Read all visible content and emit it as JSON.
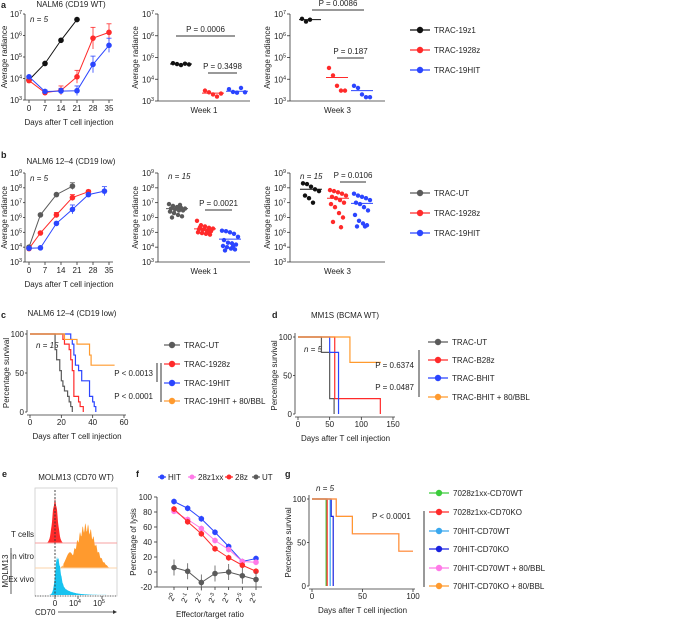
{
  "colors": {
    "black": "#111111",
    "grey": "#5a5a5a",
    "red": "#ff2a2a",
    "blue": "#2b45ff",
    "orange": "#ff9a2e",
    "green": "#3ccc3c",
    "lightblue": "#3aa8ee",
    "darkblue": "#1a22e0",
    "pink": "#ff7ae8",
    "cyan": "#17c3f0"
  },
  "panel_letters": [
    "a",
    "b",
    "c",
    "d",
    "e",
    "f",
    "g"
  ],
  "chart_data": [
    {
      "id": "a-line",
      "type": "line",
      "title": "NALM6 (CD19 WT)",
      "note": "n = 5",
      "xlabel": "Days after T cell injection",
      "ylabel": "Average radiance",
      "xticks": [
        0,
        7,
        14,
        21,
        28,
        35
      ],
      "yscale": "log",
      "ylim_exp": [
        3,
        7
      ],
      "series": [
        {
          "name": "TRAC-19z1",
          "color": "black",
          "x": [
            0,
            7,
            14,
            21
          ],
          "y": [
            8500,
            50000,
            600000,
            5500000
          ],
          "err_hi": [
            null,
            null,
            null,
            null
          ]
        },
        {
          "name": "TRAC-1928z",
          "color": "red",
          "x": [
            0,
            7,
            14,
            21,
            28,
            35
          ],
          "y": [
            8000,
            2200,
            2800,
            12000,
            750000,
            1400000
          ],
          "err_hi": [
            null,
            2800,
            4500,
            24000,
            2400000,
            3500000
          ]
        },
        {
          "name": "TRAC-19HIT",
          "color": "blue",
          "x": [
            0,
            7,
            14,
            21,
            28,
            35
          ],
          "y": [
            12000,
            2500,
            2600,
            2700,
            45000,
            350000
          ],
          "err_hi": [
            null,
            2900,
            3500,
            4500,
            110000,
            750000
          ]
        }
      ]
    },
    {
      "id": "a-week1",
      "type": "scatter",
      "xlabel": "Week 1",
      "ylabel": "Average radiance",
      "yscale": "log",
      "ylim_exp": [
        3,
        7
      ],
      "groups": [
        {
          "color": "black",
          "values": [
            55000,
            50000,
            45000,
            52000,
            48000
          ],
          "mean": 50000
        },
        {
          "color": "red",
          "values": [
            3000,
            2500,
            2000,
            1600,
            2200
          ],
          "mean": 2300
        },
        {
          "color": "blue",
          "values": [
            3500,
            2600,
            2400,
            4000,
            2500
          ],
          "mean": 2800
        }
      ],
      "pvalues": [
        "P = 0.0006",
        "P = 0.3498"
      ]
    },
    {
      "id": "a-week3",
      "type": "scatter",
      "xlabel": "Week 3",
      "ylabel": "Average radiance",
      "yscale": "log",
      "ylim_exp": [
        3,
        7
      ],
      "groups": [
        {
          "color": "black",
          "values": [
            6000000,
            4500000,
            5500000
          ],
          "mean": 5500000
        },
        {
          "color": "red",
          "values": [
            33000,
            15000,
            5000,
            3000,
            3000
          ],
          "mean": 12000
        },
        {
          "color": "blue",
          "values": [
            5000,
            4000,
            2000,
            1500,
            1500
          ],
          "mean": 3000
        }
      ],
      "pvalues": [
        "P = 0.0086",
        "P = 0.187"
      ]
    },
    {
      "id": "b-line",
      "type": "line",
      "title": "NALM6 12–4 (CD19 low)",
      "note": "n = 5",
      "xlabel": "Days after T cell injection",
      "ylabel": "Average radiance",
      "xticks": [
        0,
        7,
        14,
        21,
        28,
        35
      ],
      "yscale": "log",
      "ylim_exp": [
        3,
        9
      ],
      "series": [
        {
          "name": "TRAC-UT",
          "color": "grey",
          "x": [
            0,
            5,
            12,
            19
          ],
          "y": [
            10000,
            1500000,
            35000000,
            130000000
          ],
          "err_hi": [
            null,
            null,
            null,
            220000000
          ]
        },
        {
          "name": "TRAC-1928z",
          "color": "red",
          "x": [
            0,
            5,
            12,
            19,
            26
          ],
          "y": [
            8000,
            90000,
            1500000,
            22000000,
            55000000
          ],
          "err_hi": [
            null,
            null,
            2200000,
            35000000,
            70000000
          ]
        },
        {
          "name": "TRAC-19HIT",
          "color": "blue",
          "x": [
            0,
            5,
            12,
            19,
            26,
            33
          ],
          "y": [
            8500,
            9000,
            400000,
            3500000,
            35000000,
            60000000
          ],
          "err_hi": [
            null,
            null,
            null,
            7000000,
            null,
            120000000
          ]
        }
      ]
    },
    {
      "id": "b-week1",
      "type": "scatter",
      "note": "n = 15",
      "xlabel": "Week 1",
      "ylabel": "Average radiance",
      "yscale": "log",
      "ylim_exp": [
        3,
        9
      ],
      "groups": [
        {
          "color": "grey",
          "values": [
            8000000,
            6000000,
            5000000,
            4500000,
            4000000,
            4000000,
            3500000,
            3000000,
            3000000,
            2500000,
            2000000,
            1500000,
            1200000,
            1000000,
            7000000
          ],
          "mean": 4000000
        },
        {
          "color": "red",
          "values": [
            600000,
            300000,
            250000,
            200000,
            180000,
            160000,
            150000,
            130000,
            120000,
            100000,
            90000,
            80000,
            70000,
            220000,
            110000
          ],
          "mean": 170000
        },
        {
          "color": "blue",
          "values": [
            130000,
            120000,
            100000,
            80000,
            50000,
            30000,
            20000,
            18000,
            15000,
            12000,
            10000,
            8000,
            7000,
            6000,
            11000
          ],
          "mean": 35000
        }
      ],
      "pvalues": [
        "P = 0.0021"
      ]
    },
    {
      "id": "b-week3",
      "type": "scatter",
      "note": "n = 15",
      "xlabel": "Week 3",
      "ylabel": "Average radiance",
      "yscale": "log",
      "ylim_exp": [
        3,
        9
      ],
      "groups": [
        {
          "color": "black",
          "values": [
            200000000,
            180000000,
            120000000,
            80000000,
            60000000,
            30000000,
            20000000,
            10000000
          ],
          "mean": 80000000
        },
        {
          "color": "red",
          "values": [
            70000000,
            60000000,
            50000000,
            40000000,
            30000000,
            25000000,
            20000000,
            15000000,
            10000000,
            8000000,
            5000000,
            2000000,
            1000000,
            500000,
            220000
          ],
          "mean": 20000000
        },
        {
          "color": "blue",
          "values": [
            40000000,
            30000000,
            25000000,
            20000000,
            15000000,
            10000000,
            8000000,
            5000000,
            3000000,
            1500000,
            600000,
            400000,
            300000,
            250000,
            250000
          ],
          "mean": 9000000
        }
      ],
      "pvalues": [
        "P = 0.0106"
      ]
    },
    {
      "id": "c-survival",
      "type": "line",
      "title": "NALM6 12–4 (CD19 low)",
      "note": "n = 15",
      "xlabel": "Days after T cell injection",
      "ylabel": "Percentage survival",
      "xticks": [
        0,
        20,
        40,
        60
      ],
      "yticks": [
        0,
        50,
        100
      ],
      "xlim": [
        0,
        60
      ],
      "ylim": [
        0,
        100
      ],
      "series": [
        {
          "name": "TRAC-UT",
          "color": "grey",
          "steps": [
            [
              0,
              100
            ],
            [
              16,
              80
            ],
            [
              17,
              67
            ],
            [
              19,
              53
            ],
            [
              20,
              40
            ],
            [
              21,
              33
            ],
            [
              22,
              27
            ],
            [
              24,
              20
            ],
            [
              25,
              13
            ],
            [
              26,
              7
            ],
            [
              27,
              0
            ]
          ]
        },
        {
          "name": "TRAC-1928z",
          "color": "red",
          "steps": [
            [
              0,
              100
            ],
            [
              21,
              93
            ],
            [
              22,
              87
            ],
            [
              25,
              80
            ],
            [
              26,
              67
            ],
            [
              27,
              53
            ],
            [
              28,
              20
            ],
            [
              31,
              13
            ],
            [
              32,
              7
            ],
            [
              34,
              0
            ]
          ]
        },
        {
          "name": "TRAC-19HIT",
          "color": "blue",
          "steps": [
            [
              0,
              100
            ],
            [
              26,
              93
            ],
            [
              27,
              87
            ],
            [
              28,
              73
            ],
            [
              29,
              60
            ],
            [
              31,
              53
            ],
            [
              33,
              40
            ],
            [
              38,
              20
            ],
            [
              40,
              13
            ],
            [
              41,
              7
            ],
            [
              42,
              0
            ]
          ]
        },
        {
          "name": "TRAC-19HIT + 80/BBL",
          "color": "orange",
          "steps": [
            [
              0,
              100
            ],
            [
              22,
              93
            ],
            [
              30,
              87
            ],
            [
              38,
              73
            ],
            [
              39,
              60
            ],
            [
              54,
              60
            ]
          ]
        }
      ],
      "pvalues": [
        "P < 0.0013",
        "P < 0.0001"
      ]
    },
    {
      "id": "d-survival",
      "type": "line",
      "title": "MM1S (BCMA WT)",
      "note": "n = 5",
      "xlabel": "Days after T cell injection",
      "ylabel": "Percentage survival",
      "xticks": [
        0,
        50,
        100,
        150
      ],
      "yticks": [
        0,
        50,
        100
      ],
      "xlim": [
        0,
        150
      ],
      "ylim": [
        0,
        100
      ],
      "series": [
        {
          "name": "TRAC-UT",
          "color": "grey",
          "steps": [
            [
              0,
              100
            ],
            [
              37,
              80
            ],
            [
              50,
              20
            ],
            [
              57,
              0
            ]
          ]
        },
        {
          "name": "TRAC-B28z",
          "color": "red",
          "steps": [
            [
              0,
              100
            ],
            [
              58,
              20
            ],
            [
              130,
              0
            ]
          ]
        },
        {
          "name": "TRAC-BHIT",
          "color": "blue",
          "steps": [
            [
              0,
              100
            ],
            [
              50,
              80
            ],
            [
              64,
              0
            ]
          ]
        },
        {
          "name": "TRAC-BHIT + 80/BBL",
          "color": "orange",
          "steps": [
            [
              0,
              100
            ],
            [
              82,
              67
            ],
            [
              131,
              67
            ]
          ]
        }
      ],
      "pvalues": [
        "P = 0.6374",
        "P = 0.0487"
      ]
    },
    {
      "id": "e-flow",
      "type": "area",
      "title": "MOLM13 (CD70 WT)",
      "xlabel": "CD70",
      "xticks": [
        "0",
        "10^4",
        "10^5"
      ],
      "rows": [
        {
          "label": "T cells",
          "color": "red"
        },
        {
          "label": "In vitro",
          "color": "orange"
        },
        {
          "label": "Ex vivo",
          "color": "cyan"
        }
      ],
      "group_label": "MOLM13"
    },
    {
      "id": "f-lysis",
      "type": "line",
      "xlabel": "Effector/target ratio",
      "ylabel": "Percentage of lysis",
      "x_exponents": [
        0,
        -1,
        -2,
        -3,
        -4,
        -5,
        -6
      ],
      "yticks": [
        -20,
        0,
        20,
        40,
        60,
        80,
        100
      ],
      "ylim": [
        -20,
        100
      ],
      "series": [
        {
          "name": "HIT",
          "color": "blue",
          "y": [
            94,
            85,
            71,
            53,
            34,
            14,
            18
          ]
        },
        {
          "name": "28z1xx",
          "color": "pink",
          "y": [
            81,
            70,
            58,
            42,
            30,
            14,
            13
          ]
        },
        {
          "name": "28z",
          "color": "red",
          "y": [
            84,
            67,
            51,
            31,
            19,
            9,
            1
          ]
        },
        {
          "name": "UT",
          "color": "grey",
          "y": [
            6,
            1,
            -14,
            -2,
            0,
            -5,
            -10
          ]
        }
      ]
    },
    {
      "id": "g-survival",
      "type": "line",
      "note": "n = 5",
      "xlabel": "Days after T cell injection",
      "ylabel": "Percentage survival",
      "xticks": [
        0,
        50,
        100
      ],
      "yticks": [
        0,
        50,
        100
      ],
      "xlim": [
        0,
        100
      ],
      "ylim": [
        0,
        100
      ],
      "series": [
        {
          "name": "7028z1xx-CD70WT",
          "color": "green",
          "steps": [
            [
              0,
              100
            ],
            [
              14,
              0
            ]
          ]
        },
        {
          "name": "7028z1xx-CD70KO",
          "color": "red",
          "steps": [
            [
              0,
              100
            ],
            [
              15,
              0
            ]
          ]
        },
        {
          "name": "70HIT-CD70WT",
          "color": "lightblue",
          "steps": [
            [
              0,
              100
            ],
            [
              18,
              0
            ]
          ]
        },
        {
          "name": "70HIT-CD70KO",
          "color": "darkblue",
          "steps": [
            [
              0,
              100
            ],
            [
              19,
              80
            ],
            [
              21,
              0
            ]
          ]
        },
        {
          "name": "70HIT-CD70WT + 80/BBL",
          "color": "pink",
          "steps": [
            [
              0,
              100
            ],
            [
              24,
              80
            ],
            [
              40,
              60
            ],
            [
              86,
              40
            ],
            [
              100,
              40
            ]
          ]
        },
        {
          "name": "70HIT-CD70KO + 80/BBL",
          "color": "orange",
          "steps": [
            [
              0,
              100
            ],
            [
              24,
              80
            ],
            [
              40,
              60
            ],
            [
              86,
              40
            ],
            [
              100,
              40
            ]
          ]
        }
      ],
      "pvalues": [
        "P < 0.0001"
      ]
    }
  ]
}
